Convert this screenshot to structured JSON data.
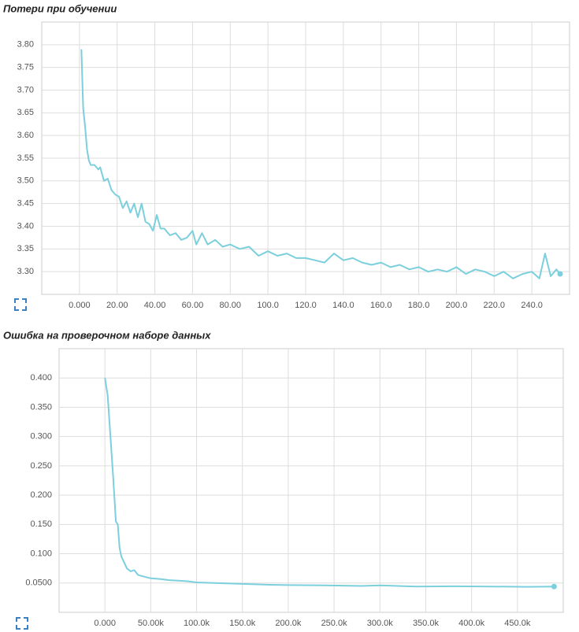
{
  "chart_data": [
    {
      "type": "line",
      "title": "Потери при обучении",
      "color": "#7ccfdc",
      "grid": true,
      "xlim": [
        -20,
        260
      ],
      "ylim": [
        3.25,
        3.85
      ],
      "xticks": [
        {
          "value": 0,
          "label": "0.000"
        },
        {
          "value": 20,
          "label": "20.00"
        },
        {
          "value": 40,
          "label": "40.00"
        },
        {
          "value": 60,
          "label": "60.00"
        },
        {
          "value": 80,
          "label": "80.00"
        },
        {
          "value": 100,
          "label": "100.0"
        },
        {
          "value": 120,
          "label": "120.0"
        },
        {
          "value": 140,
          "label": "140.0"
        },
        {
          "value": 160,
          "label": "160.0"
        },
        {
          "value": 180,
          "label": "180.0"
        },
        {
          "value": 200,
          "label": "200.0"
        },
        {
          "value": 220,
          "label": "220.0"
        },
        {
          "value": 240,
          "label": "240.0"
        }
      ],
      "yticks": [
        {
          "value": 3.3,
          "label": "3.30"
        },
        3.35,
        {
          "value": 3.4,
          "label": "3.40"
        },
        3.45,
        {
          "value": 3.5,
          "label": "3.50"
        },
        3.55,
        {
          "value": 3.6,
          "label": "3.60"
        },
        3.65,
        {
          "value": 3.7,
          "label": "3.70"
        },
        3.75,
        {
          "value": 3.8,
          "label": "3.80"
        }
      ],
      "x": [
        1,
        2,
        3,
        4,
        5,
        6,
        8,
        10,
        11,
        13,
        15,
        17,
        19,
        21,
        23,
        25,
        27,
        29,
        31,
        33,
        35,
        37,
        39,
        41,
        43,
        45,
        48,
        51,
        54,
        57,
        60,
        62,
        65,
        68,
        72,
        76,
        80,
        85,
        90,
        95,
        100,
        105,
        110,
        115,
        120,
        125,
        130,
        135,
        140,
        145,
        150,
        155,
        160,
        165,
        170,
        175,
        180,
        185,
        190,
        195,
        200,
        205,
        210,
        215,
        220,
        225,
        230,
        235,
        240,
        244,
        247,
        250,
        253,
        255
      ],
      "values": [
        3.79,
        3.66,
        3.62,
        3.57,
        3.545,
        3.535,
        3.535,
        3.525,
        3.53,
        3.5,
        3.505,
        3.48,
        3.47,
        3.465,
        3.44,
        3.455,
        3.43,
        3.45,
        3.42,
        3.45,
        3.41,
        3.405,
        3.39,
        3.425,
        3.395,
        3.395,
        3.38,
        3.385,
        3.37,
        3.375,
        3.39,
        3.36,
        3.385,
        3.36,
        3.37,
        3.355,
        3.36,
        3.35,
        3.355,
        3.335,
        3.345,
        3.335,
        3.34,
        3.33,
        3.33,
        3.325,
        3.32,
        3.34,
        3.325,
        3.33,
        3.32,
        3.315,
        3.32,
        3.31,
        3.315,
        3.305,
        3.31,
        3.3,
        3.305,
        3.3,
        3.31,
        3.295,
        3.305,
        3.3,
        3.29,
        3.3,
        3.285,
        3.295,
        3.3,
        3.285,
        3.34,
        3.29,
        3.305,
        3.295
      ]
    },
    {
      "type": "line",
      "title": "Ошибка на проверочном наборе данных",
      "color": "#7ccfdc",
      "grid": true,
      "xlim": [
        -50000,
        500000
      ],
      "ylim": [
        0,
        0.45
      ],
      "xticks": [
        {
          "value": 0,
          "label": "0.000"
        },
        {
          "value": 50000,
          "label": "50.00k"
        },
        {
          "value": 100000,
          "label": "100.0k"
        },
        {
          "value": 150000,
          "label": "150.0k"
        },
        {
          "value": 200000,
          "label": "200.0k"
        },
        {
          "value": 250000,
          "label": "250.0k"
        },
        {
          "value": 300000,
          "label": "300.0k"
        },
        {
          "value": 350000,
          "label": "350.0k"
        },
        {
          "value": 400000,
          "label": "400.0k"
        },
        {
          "value": 450000,
          "label": "450.0k"
        }
      ],
      "yticks": [
        {
          "value": 0.05,
          "label": "0.0500"
        },
        {
          "value": 0.1,
          "label": "0.100"
        },
        {
          "value": 0.15,
          "label": "0.150"
        },
        {
          "value": 0.2,
          "label": "0.200"
        },
        {
          "value": 0.25,
          "label": "0.250"
        },
        {
          "value": 0.3,
          "label": "0.300"
        },
        {
          "value": 0.35,
          "label": "0.350"
        },
        {
          "value": 0.4,
          "label": "0.400"
        }
      ],
      "x": [
        0,
        3000,
        6000,
        9000,
        12000,
        14000,
        16000,
        18000,
        21000,
        24000,
        28000,
        32000,
        36000,
        40000,
        50000,
        60000,
        70000,
        80000,
        90000,
        100000,
        120000,
        140000,
        160000,
        180000,
        200000,
        240000,
        280000,
        300000,
        340000,
        380000,
        420000,
        460000,
        490000
      ],
      "values": [
        0.4,
        0.37,
        0.3,
        0.23,
        0.155,
        0.15,
        0.11,
        0.095,
        0.085,
        0.075,
        0.07,
        0.072,
        0.064,
        0.062,
        0.058,
        0.057,
        0.055,
        0.054,
        0.053,
        0.051,
        0.05,
        0.049,
        0.048,
        0.047,
        0.0465,
        0.046,
        0.045,
        0.046,
        0.044,
        0.0445,
        0.044,
        0.0435,
        0.044
      ]
    }
  ]
}
